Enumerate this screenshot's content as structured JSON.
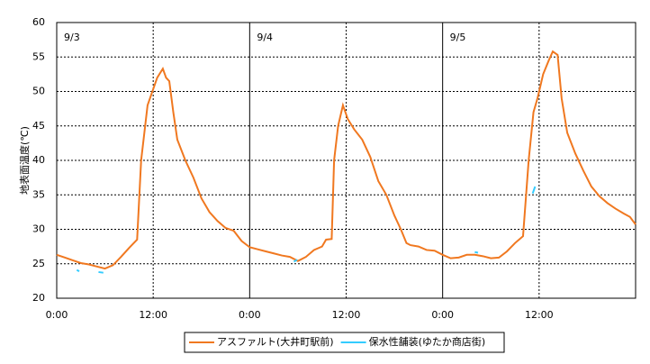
{
  "chart_data": {
    "type": "line",
    "y_label": "地表面温度(℃)",
    "annotations": [
      "9/3",
      "9/4",
      "9/5"
    ],
    "xlim": [
      0,
      72
    ],
    "ylim": [
      20,
      60
    ],
    "xticks": [
      {
        "value": 0,
        "label": "0:00"
      },
      {
        "value": 12,
        "label": "12:00"
      },
      {
        "value": 24,
        "label": "0:00"
      },
      {
        "value": 36,
        "label": "12:00"
      },
      {
        "value": 48,
        "label": "0:00"
      },
      {
        "value": 60,
        "label": "12:00"
      }
    ],
    "yticks": [
      20,
      25,
      30,
      35,
      40,
      45,
      50,
      55,
      60
    ],
    "grid": true,
    "legend": "bottom",
    "series": [
      {
        "name": "アスファルト(大井町駅前)",
        "color": "#f07820",
        "x": [
          0,
          1,
          2,
          3,
          4,
          5,
          6,
          7,
          8,
          9,
          10,
          10.5,
          11.3,
          12.5,
          13.2,
          13.6,
          14,
          14.5,
          15,
          16,
          17,
          18,
          19,
          20,
          21,
          22,
          23,
          24,
          25,
          26,
          27,
          28,
          29,
          30,
          31,
          32,
          33,
          33.5,
          34.2,
          34.5,
          35,
          35.6,
          36.2,
          37,
          38,
          39,
          40,
          41,
          42,
          42.8,
          43.5,
          44,
          45,
          46,
          47,
          48,
          49,
          50,
          51,
          52,
          53,
          54,
          55,
          56,
          57,
          58,
          58.7,
          59.3,
          59.8,
          60.5,
          61.2,
          61.7,
          62.3,
          62.8,
          63.5,
          64.5,
          65.5,
          66.5,
          67.5,
          68.5,
          69.5,
          70.5,
          71.3,
          72
        ],
        "values": [
          26.3,
          25.9,
          25.5,
          25.1,
          24.9,
          24.6,
          24.3,
          24.8,
          26,
          27.3,
          28.5,
          40,
          48,
          52,
          53.3,
          52,
          51.5,
          47,
          43,
          40,
          37.5,
          34.5,
          32.5,
          31.2,
          30.2,
          29.8,
          28.3,
          27.4,
          27.1,
          26.8,
          26.5,
          26.2,
          26,
          25.4,
          26,
          27,
          27.5,
          28.5,
          28.6,
          40,
          45,
          48,
          46,
          44.5,
          43,
          40.5,
          37,
          35,
          32,
          30,
          28,
          27.7,
          27.5,
          27,
          26.9,
          26.3,
          25.8,
          25.9,
          26.3,
          26.3,
          26.1,
          25.8,
          25.9,
          26.8,
          28,
          29,
          40,
          47,
          49,
          52.5,
          54.5,
          55.8,
          55.3,
          49,
          44,
          41,
          38.5,
          36.2,
          34.8,
          33.8,
          33,
          32.3,
          31.8,
          30.7
        ]
      },
      {
        "name": "保水性舗装(ゆたか商店街)",
        "color": "#33ccff",
        "x": [
          2.5,
          2.8,
          4,
          5.2,
          5.8,
          10,
          29.5,
          29.9,
          40,
          52,
          52.4,
          55,
          59.2,
          59.5
        ],
        "values": [
          24.1,
          23.9,
          null,
          23.8,
          23.7,
          null,
          25.3,
          25.6,
          null,
          26.7,
          26.6,
          null,
          35.2,
          36.2
        ]
      }
    ]
  }
}
